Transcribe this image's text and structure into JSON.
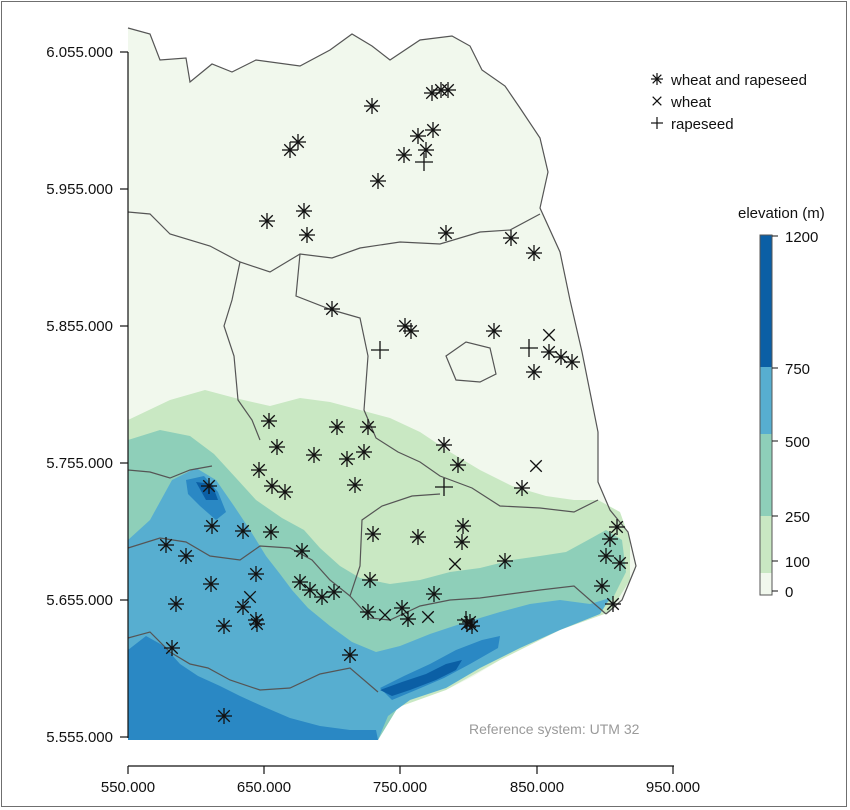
{
  "map": {
    "y_ticks": [
      "6.055.000",
      "5.955.000",
      "5.855.000",
      "5.755.000",
      "5.655.000",
      "5.555.000"
    ],
    "x_ticks": [
      "550.000",
      "650.000",
      "750.000",
      "850.000",
      "950.000"
    ],
    "reference_text": "Reference system: UTM 32"
  },
  "legend": {
    "items": [
      {
        "symbol": "asterisk",
        "label": "wheat and rapeseed"
      },
      {
        "symbol": "x",
        "label": "wheat"
      },
      {
        "symbol": "plus",
        "label": "rapeseed"
      }
    ]
  },
  "elevation_scale": {
    "title": "elevation (m)",
    "ticks": [
      "1200",
      "750",
      "500",
      "250",
      "100",
      "0"
    ],
    "colors": [
      "#f1f8ed",
      "#c9e8c3",
      "#8ecfb9",
      "#57aed0",
      "#2a88c4",
      "#0b5fa5"
    ]
  },
  "sites": {
    "wheat_and_rapeseed": [
      [
        372,
        106
      ],
      [
        441,
        90
      ],
      [
        448,
        90
      ],
      [
        432,
        93
      ],
      [
        418,
        136
      ],
      [
        433,
        130
      ],
      [
        404,
        155
      ],
      [
        426,
        150
      ],
      [
        290,
        150
      ],
      [
        298,
        142
      ],
      [
        378,
        181
      ],
      [
        267,
        221
      ],
      [
        304,
        211
      ],
      [
        307,
        235
      ],
      [
        446,
        233
      ],
      [
        511,
        238
      ],
      [
        534,
        253
      ],
      [
        332,
        309
      ],
      [
        405,
        326
      ],
      [
        411,
        331
      ],
      [
        494,
        331
      ],
      [
        549,
        352
      ],
      [
        561,
        357
      ],
      [
        572,
        362
      ],
      [
        534,
        372
      ],
      [
        269,
        421
      ],
      [
        337,
        427
      ],
      [
        368,
        427
      ],
      [
        444,
        445
      ],
      [
        277,
        447
      ],
      [
        314,
        455
      ],
      [
        347,
        459
      ],
      [
        364,
        452
      ],
      [
        458,
        465
      ],
      [
        259,
        470
      ],
      [
        272,
        486
      ],
      [
        285,
        492
      ],
      [
        355,
        485
      ],
      [
        522,
        488
      ],
      [
        209,
        486
      ],
      [
        212,
        526
      ],
      [
        243,
        531
      ],
      [
        271,
        532
      ],
      [
        166,
        545
      ],
      [
        186,
        556
      ],
      [
        373,
        534
      ],
      [
        418,
        537
      ],
      [
        463,
        526
      ],
      [
        462,
        542
      ],
      [
        505,
        561
      ],
      [
        617,
        527
      ],
      [
        610,
        539
      ],
      [
        606,
        556
      ],
      [
        620,
        563
      ],
      [
        302,
        551
      ],
      [
        256,
        574
      ],
      [
        211,
        584
      ],
      [
        176,
        604
      ],
      [
        300,
        582
      ],
      [
        310,
        590
      ],
      [
        322,
        597
      ],
      [
        334,
        592
      ],
      [
        370,
        580
      ],
      [
        243,
        607
      ],
      [
        256,
        620
      ],
      [
        257,
        624
      ],
      [
        224,
        626
      ],
      [
        434,
        594
      ],
      [
        368,
        612
      ],
      [
        402,
        608
      ],
      [
        408,
        619
      ],
      [
        467,
        624
      ],
      [
        472,
        626
      ],
      [
        470,
        622
      ],
      [
        602,
        586
      ],
      [
        613,
        604
      ],
      [
        172,
        648
      ],
      [
        350,
        655
      ],
      [
        224,
        716
      ]
    ],
    "wheat": [
      [
        549,
        335
      ],
      [
        536,
        466
      ],
      [
        250,
        597
      ],
      [
        385,
        615
      ],
      [
        428,
        617
      ],
      [
        455,
        564
      ]
    ],
    "rapeseed": [
      [
        380,
        350
      ],
      [
        529,
        348
      ],
      [
        444,
        487
      ],
      [
        424,
        162
      ],
      [
        466,
        620
      ]
    ]
  }
}
